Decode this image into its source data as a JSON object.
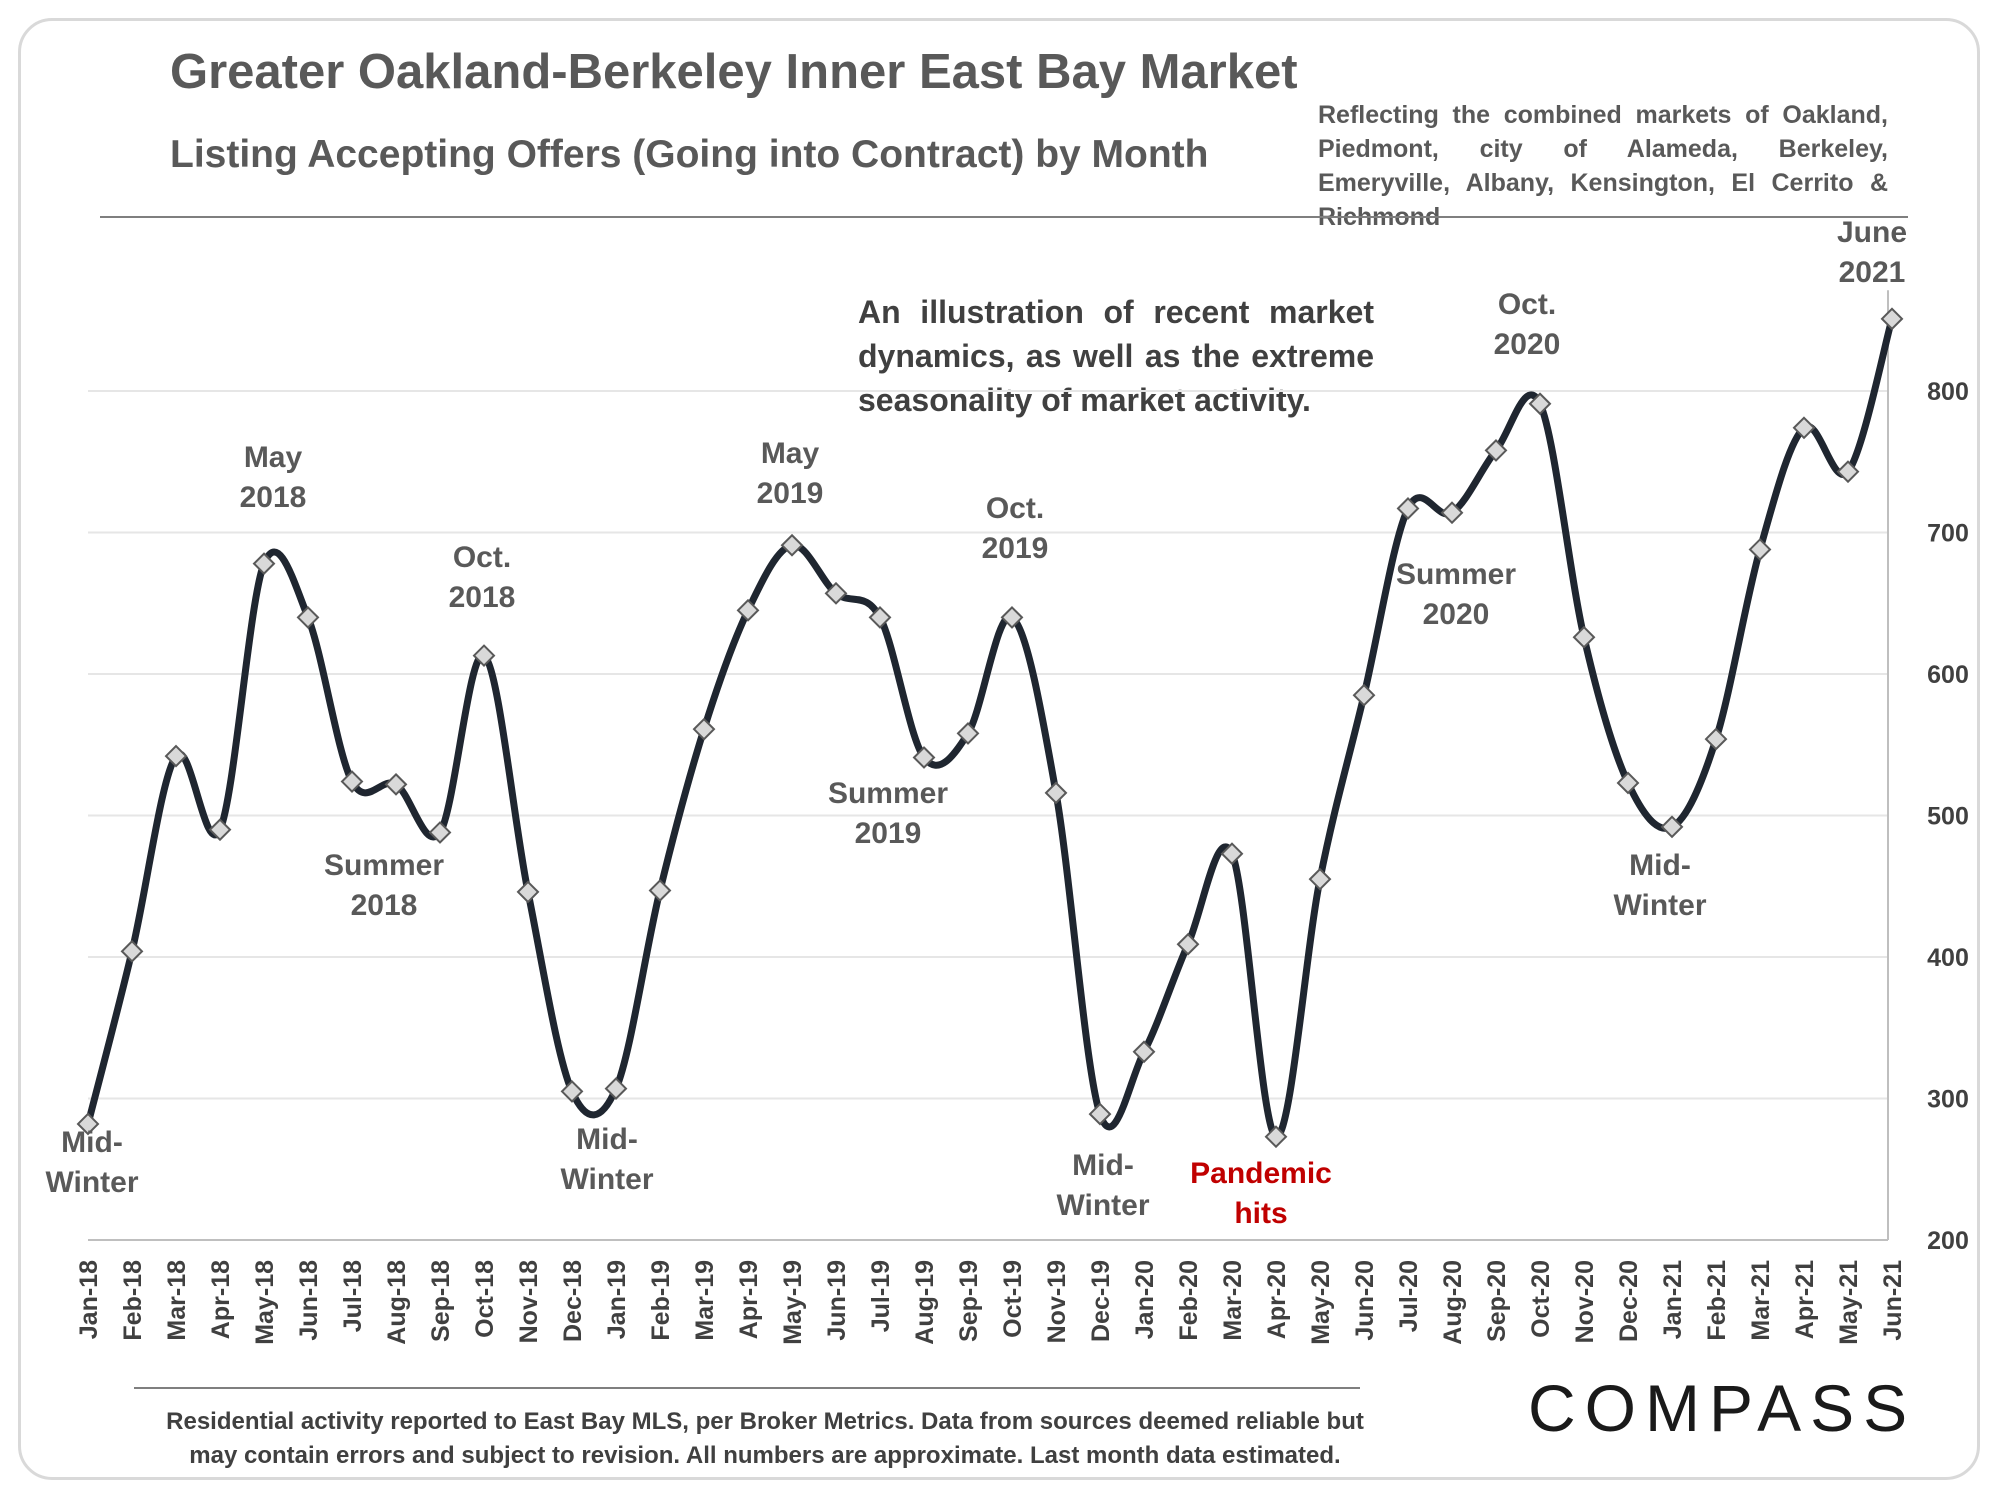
{
  "header": {
    "title": "Greater Oakland-Berkeley Inner East Bay Market",
    "subtitle": "Listing Accepting Offers (Going into Contract) by Month",
    "note": "Reflecting the combined markets of Oakland, Piedmont, city of Alameda, Berkeley, Emeryville, Albany, Kensington, El Cerrito & Richmond"
  },
  "illustration_text": "An illustration of recent market dynamics, as well as the extreme seasonality of market activity.",
  "footer": {
    "text": "Residential activity reported to East Bay MLS, per Broker Metrics. Data from sources deemed reliable but may contain errors and subject to revision. All numbers are approximate. Last month data estimated.",
    "logo": "COMPASS"
  },
  "chart_data": {
    "type": "line",
    "title": "Greater Oakland-Berkeley Inner East Bay Market",
    "subtitle": "Listing Accepting Offers (Going into Contract) by Month",
    "xlabel": "",
    "ylabel": "",
    "ylim": [
      200,
      850
    ],
    "y_ticks": [
      200,
      300,
      400,
      500,
      600,
      700,
      800
    ],
    "y_axis_side": "right",
    "grid": true,
    "marker": "diamond",
    "line_color": "#1f2630",
    "categories": [
      "Jan-18",
      "Feb-18",
      "Mar-18",
      "Apr-18",
      "May-18",
      "Jun-18",
      "Jul-18",
      "Aug-18",
      "Sep-18",
      "Oct-18",
      "Nov-18",
      "Dec-18",
      "Jan-19",
      "Feb-19",
      "Mar-19",
      "Apr-19",
      "May-19",
      "Jun-19",
      "Jul-19",
      "Aug-19",
      "Sep-19",
      "Oct-19",
      "Nov-19",
      "Dec-19",
      "Jan-20",
      "Feb-20",
      "Mar-20",
      "Apr-20",
      "May-20",
      "Jun-20",
      "Jul-20",
      "Aug-20",
      "Sep-20",
      "Oct-20",
      "Nov-20",
      "Dec-20",
      "Jan-21",
      "Feb-21",
      "Mar-21",
      "Apr-21",
      "May-21",
      "Jun-21"
    ],
    "values": [
      282,
      404,
      542,
      490,
      678,
      640,
      524,
      522,
      488,
      613,
      446,
      305,
      307,
      447,
      561,
      645,
      691,
      657,
      640,
      541,
      558,
      640,
      516,
      289,
      333,
      409,
      473,
      273,
      455,
      585,
      717,
      714,
      758,
      791,
      626,
      523,
      492,
      554,
      688,
      774,
      743,
      851
    ],
    "annotations": [
      {
        "lines": [
          "Mid-",
          "Winter"
        ],
        "color": "#595959"
      },
      {
        "lines": [
          "May",
          "2018"
        ],
        "color": "#595959"
      },
      {
        "lines": [
          "Summer",
          "2018"
        ],
        "color": "#595959"
      },
      {
        "lines": [
          "Oct.",
          "2018"
        ],
        "color": "#595959"
      },
      {
        "lines": [
          "Mid-",
          "Winter"
        ],
        "color": "#595959"
      },
      {
        "lines": [
          "May",
          "2019"
        ],
        "color": "#595959"
      },
      {
        "lines": [
          "Summer",
          "2019"
        ],
        "color": "#595959"
      },
      {
        "lines": [
          "Oct.",
          "2019"
        ],
        "color": "#595959"
      },
      {
        "lines": [
          "Mid-",
          "Winter"
        ],
        "color": "#595959"
      },
      {
        "lines": [
          "Pandemic",
          "hits"
        ],
        "color": "#c00000"
      },
      {
        "lines": [
          "Summer",
          "2020"
        ],
        "color": "#595959"
      },
      {
        "lines": [
          "Oct.",
          "2020"
        ],
        "color": "#595959"
      },
      {
        "lines": [
          "Mid-",
          "Winter"
        ],
        "color": "#595959"
      },
      {
        "lines": [
          "June",
          "2021"
        ],
        "color": "#595959"
      }
    ]
  }
}
